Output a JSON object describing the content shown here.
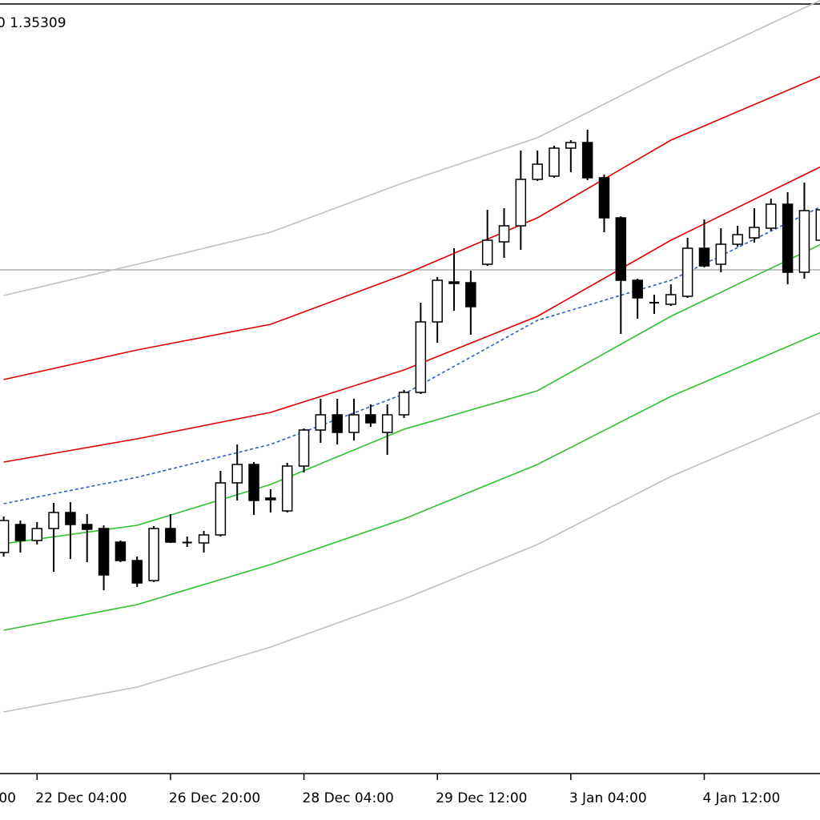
{
  "chart_data": {
    "type": "candlestick",
    "header": "0 1.35309",
    "clipped_x_label": "00",
    "ylim": [
      1.3314,
      1.37
    ],
    "hline": 1.35652,
    "up_color": "#ffffff",
    "down_color": "#000000",
    "categories": [
      null,
      null,
      "22 Dec 04:00",
      null,
      null,
      null,
      null,
      null,
      null,
      null,
      "26 Dec 20:00",
      null,
      null,
      null,
      null,
      null,
      null,
      null,
      "28 Dec 04:00",
      null,
      null,
      null,
      null,
      null,
      null,
      null,
      "29 Dec 12:00",
      null,
      null,
      null,
      null,
      null,
      null,
      null,
      "3 Jan 04:00",
      null,
      null,
      null,
      null,
      null,
      null,
      null,
      "4 Jan 12:00",
      null,
      null,
      null,
      null,
      null,
      null,
      null
    ],
    "open": [
      1.3424,
      1.3438,
      1.343,
      1.3436,
      1.3444,
      1.3438,
      1.3436,
      1.34292,
      1.342,
      1.341,
      1.3436,
      1.34292,
      1.34288,
      1.34328,
      1.34588,
      1.3468,
      1.34512,
      1.34448,
      1.34672,
      1.34852,
      1.34928,
      1.3484,
      1.34928,
      1.3484,
      1.34928,
      1.3504,
      1.35392,
      1.35592,
      1.35588,
      1.3568,
      1.35792,
      1.35872,
      1.36104,
      1.3612,
      1.3626,
      1.36288,
      1.36112,
      1.35912,
      1.356,
      1.35492,
      1.3548,
      1.3552,
      1.3576,
      1.3568,
      1.3578,
      1.35812,
      1.3586,
      1.3598,
      1.3564,
      1.358
    ],
    "high": [
      1.3442,
      1.344,
      1.34392,
      1.34488,
      1.34492,
      1.34432,
      1.34376,
      1.343,
      1.3422,
      1.34372,
      1.34432,
      1.3432,
      1.34348,
      1.34648,
      1.3478,
      1.34692,
      1.34556,
      1.34688,
      1.3486,
      1.35008,
      1.35008,
      1.35008,
      1.3498,
      1.3498,
      1.35052,
      1.35488,
      1.35616,
      1.3576,
      1.35648,
      1.35952,
      1.3596,
      1.36248,
      1.36248,
      1.36272,
      1.363,
      1.36352,
      1.36128,
      1.3592,
      1.35608,
      1.35528,
      1.3558,
      1.35812,
      1.35904,
      1.3586,
      1.35872,
      1.3596,
      1.36008,
      1.3604,
      1.36088,
      1.3598
    ],
    "low": [
      1.3422,
      1.3424,
      1.3428,
      1.34144,
      1.34208,
      1.34192,
      1.34052,
      1.34192,
      1.34068,
      1.34092,
      1.34288,
      1.34268,
      1.3424,
      1.3432,
      1.345,
      1.34428,
      1.3444,
      1.3444,
      1.3464,
      1.34788,
      1.3478,
      1.348,
      1.34868,
      1.34728,
      1.34912,
      1.35032,
      1.35288,
      1.35448,
      1.35328,
      1.35672,
      1.35712,
      1.35752,
      1.36096,
      1.36112,
      1.3614,
      1.361,
      1.3584,
      1.35332,
      1.35408,
      1.35432,
      1.35472,
      1.35512,
      1.35664,
      1.3564,
      1.35768,
      1.35788,
      1.35848,
      1.3558,
      1.35608,
      1.3576
    ],
    "close": [
      1.344,
      1.343,
      1.3436,
      1.3444,
      1.3438,
      1.34356,
      1.34128,
      1.342,
      1.34088,
      1.3436,
      1.34292,
      1.34288,
      1.34328,
      1.34588,
      1.3468,
      1.345,
      1.34504,
      1.34672,
      1.34852,
      1.34928,
      1.3484,
      1.34928,
      1.34888,
      1.34928,
      1.3504,
      1.35392,
      1.356,
      1.35584,
      1.35468,
      1.358,
      1.35872,
      1.36104,
      1.3618,
      1.3626,
      1.36288,
      1.36112,
      1.35912,
      1.356,
      1.35512,
      1.35484,
      1.35528,
      1.3576,
      1.35672,
      1.3578,
      1.35828,
      1.35864,
      1.3598,
      1.3564,
      1.35948,
      1.35952
    ],
    "lines": [
      {
        "color": "#c0c0c0",
        "dashed": false,
        "x": [
          0,
          8,
          16,
          24,
          32,
          40,
          49
        ],
        "values": [
          1.35524,
          1.3568,
          1.3584,
          1.36088,
          1.36312,
          1.36648,
          1.37
        ]
      },
      {
        "color": "#e00000",
        "dashed": false,
        "x": [
          0,
          8,
          16,
          24,
          32,
          40,
          49
        ],
        "values": [
          1.35104,
          1.35252,
          1.3538,
          1.35628,
          1.35912,
          1.363,
          1.3662
        ]
      },
      {
        "color": "#e00000",
        "dashed": false,
        "x": [
          0,
          8,
          16,
          24,
          32,
          40,
          49
        ],
        "values": [
          1.34692,
          1.34808,
          1.3494,
          1.35152,
          1.3542,
          1.358,
          1.36168
        ]
      },
      {
        "color": "#3060c0",
        "dashed": true,
        "x": [
          0,
          8,
          16,
          24,
          32,
          40,
          49
        ],
        "values": [
          1.34484,
          1.34616,
          1.3478,
          1.35032,
          1.354,
          1.356,
          1.35968
        ]
      },
      {
        "color": "#30c030",
        "dashed": false,
        "x": [
          0,
          8,
          16,
          24,
          32,
          40,
          49
        ],
        "values": [
          1.34284,
          1.34376,
          1.3458,
          1.34856,
          1.35048,
          1.3542,
          1.3578
        ]
      },
      {
        "color": "#30c030",
        "dashed": false,
        "x": [
          0,
          8,
          16,
          24,
          32,
          40,
          49
        ],
        "values": [
          1.33852,
          1.3398,
          1.3418,
          1.34408,
          1.3468,
          1.3502,
          1.3534
        ]
      },
      {
        "color": "#c0c0c0",
        "dashed": false,
        "x": [
          0,
          8,
          16,
          24,
          32,
          40,
          49
        ],
        "values": [
          1.33444,
          1.33568,
          1.33768,
          1.34008,
          1.3428,
          1.3462,
          1.3494
        ]
      }
    ]
  }
}
